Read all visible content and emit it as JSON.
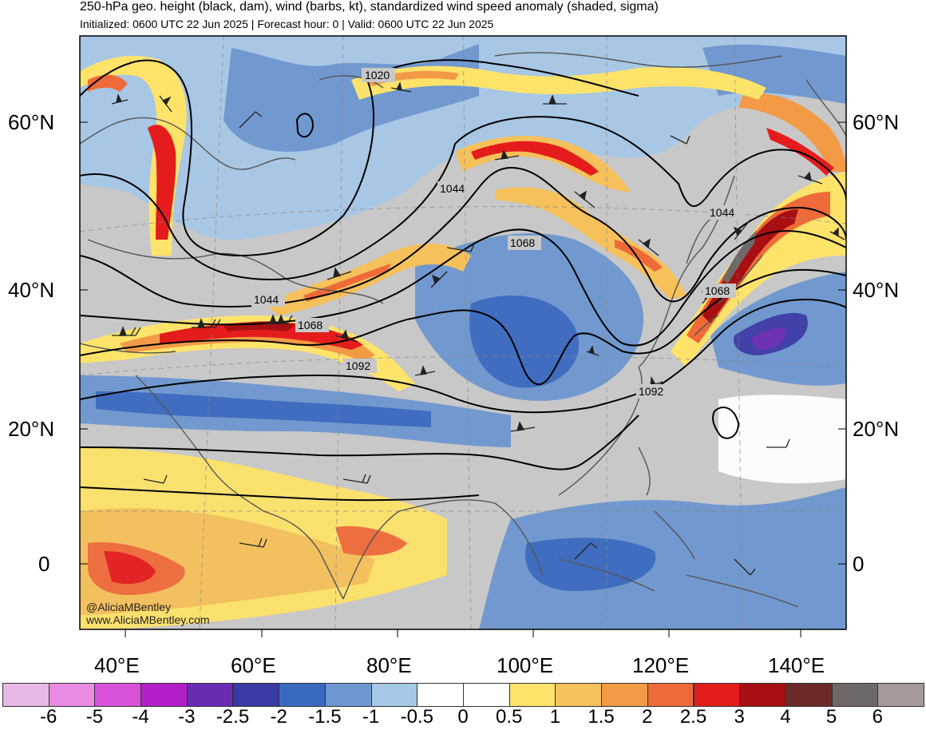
{
  "header": {
    "title": "250-hPa geo. height (black, dam), wind (barbs, kt), standardized wind speed anomaly (shaded, sigma)",
    "subtitle": "Initialized: 0600 UTC 22 Jun 2025 | Forecast hour: 0 | Valid: 0600 UTC 22 Jun 2025"
  },
  "axes": {
    "lat_left": [
      "60°N",
      "40°N",
      "20°N",
      "0"
    ],
    "lat_right": [
      "60°N",
      "40°N",
      "20°N",
      "0"
    ],
    "lon": [
      "40°E",
      "60°E",
      "80°E",
      "100°E",
      "120°E",
      "140°E"
    ]
  },
  "contour_labels": [
    "1020",
    "1044",
    "1044",
    "1044",
    "1068",
    "1068",
    "1068",
    "1092",
    "1092"
  ],
  "credit": {
    "handle": "@AliciaMBentley",
    "site": "www.AliciaMBentley.com"
  },
  "colorbar": {
    "labels": [
      "-6",
      "-5",
      "-4",
      "-3",
      "-2.5",
      "-2",
      "-1.5",
      "-1",
      "-0.5",
      "0",
      "0.5",
      "1",
      "1.5",
      "2",
      "2.5",
      "3",
      "4",
      "5",
      "6"
    ],
    "colors": [
      "#e8b9e6",
      "#e98ae3",
      "#d851d9",
      "#b11fc8",
      "#6a2bb4",
      "#3a3aa6",
      "#3a69c0",
      "#6d97d0",
      "#a7c7e6",
      "#ffffff",
      "#ffffff",
      "#fde36a",
      "#f6c05a",
      "#f29a45",
      "#ef6a39",
      "#e51c1c",
      "#a70f12",
      "#6b2a28",
      "#6f6868",
      "#a59a98"
    ]
  },
  "map_colors": {
    "land_neutral": "#c8c8c8",
    "ocean_neutral": "#ffffff",
    "coastline": "#555555",
    "contour": "#000000"
  }
}
